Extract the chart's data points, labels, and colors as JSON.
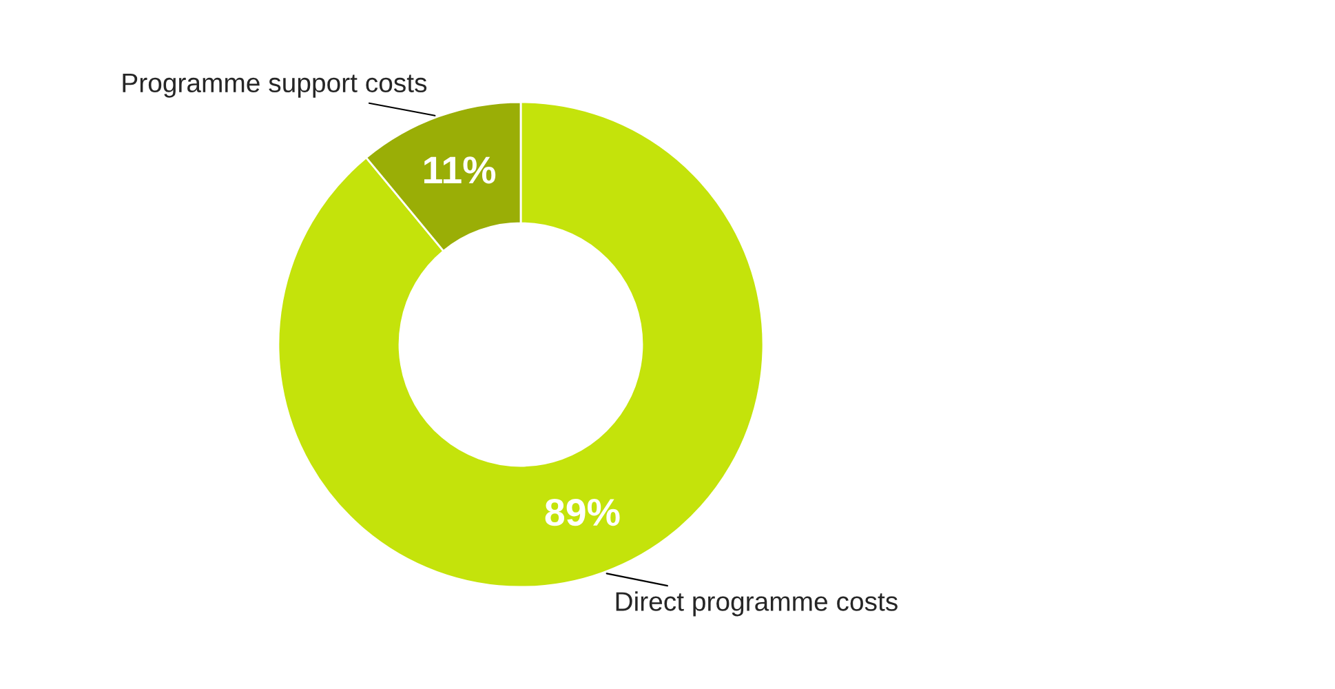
{
  "chart_data": {
    "type": "donut",
    "categories": [
      "Direct programme costs",
      "Programme support costs"
    ],
    "values": [
      89,
      11
    ],
    "colors": [
      "#c4e30b",
      "#9aae06"
    ],
    "value_labels": [
      "89%",
      "11%"
    ],
    "legend": false
  }
}
